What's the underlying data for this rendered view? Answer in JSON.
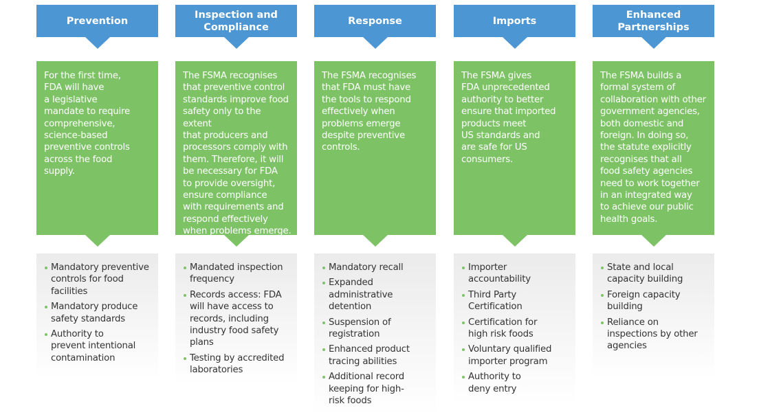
{
  "colors": {
    "header": "#4b96d3",
    "description": "#7dc366",
    "bullet": "#7dc366"
  },
  "columns": [
    {
      "title": "Prevention",
      "description": "For the first time,\nFDA will have\na legislative\nmandate to require\ncomprehensive,\nscience-based\npreventive controls\nacross the food\nsupply.",
      "items": [
        "Mandatory preventive\ncontrols for food\nfacilities",
        "Mandatory produce\nsafety standards",
        "Authority to\nprevent intentional\ncontamination"
      ]
    },
    {
      "title": "Inspection and\nCompliance",
      "description": "The FSMA recognises\nthat preventive control\nstandards improve food\nsafety only to the extent\nthat producers and\nprocessors comply with\nthem. Therefore, it will\nbe necessary for FDA\nto provide oversight,\nensure compliance\nwith requirements and\nrespond effectively\nwhen problems emerge.",
      "items": [
        "Mandated inspection\nfrequency",
        "Records access: FDA\nwill have access to\nrecords, including\nindustry food safety\nplans",
        "Testing by accredited\nlaboratories"
      ]
    },
    {
      "title": "Response",
      "description": "The FSMA recognises\nthat FDA must have\nthe tools to respond\neffectively when\nproblems emerge\ndespite preventive\ncontrols.",
      "items": [
        "Mandatory recall",
        "Expanded\nadministrative\ndetention",
        "Suspension of\nregistration",
        "Enhanced product\ntracing abilities",
        "Additional record\nkeeping for high-\nrisk foods"
      ]
    },
    {
      "title": "Imports",
      "description": "The FSMA gives\nFDA unprecedented\nauthority to better\nensure that imported\nproducts meet\nUS standards and\nare safe for US\nconsumers.",
      "items": [
        "Importer\naccountability",
        "Third Party\nCertification",
        "Certification for\nhigh risk foods",
        "Voluntary qualified\nimporter program",
        "Authority to\ndeny entry"
      ]
    },
    {
      "title": "Enhanced\nPartnerships",
      "description": "The FSMA builds a\nformal system of\ncollaboration with other\ngovernment agencies,\nboth domestic and\nforeign. In doing so,\nthe statute explicitly\nrecognises that all\nfood safety agencies\nneed to work together\nin an integrated way\nto achieve our public\nhealth goals.",
      "items": [
        "State and local\ncapacity building",
        "Foreign capacity\nbuilding",
        "Reliance on\ninspections by other\nagencies"
      ]
    }
  ]
}
